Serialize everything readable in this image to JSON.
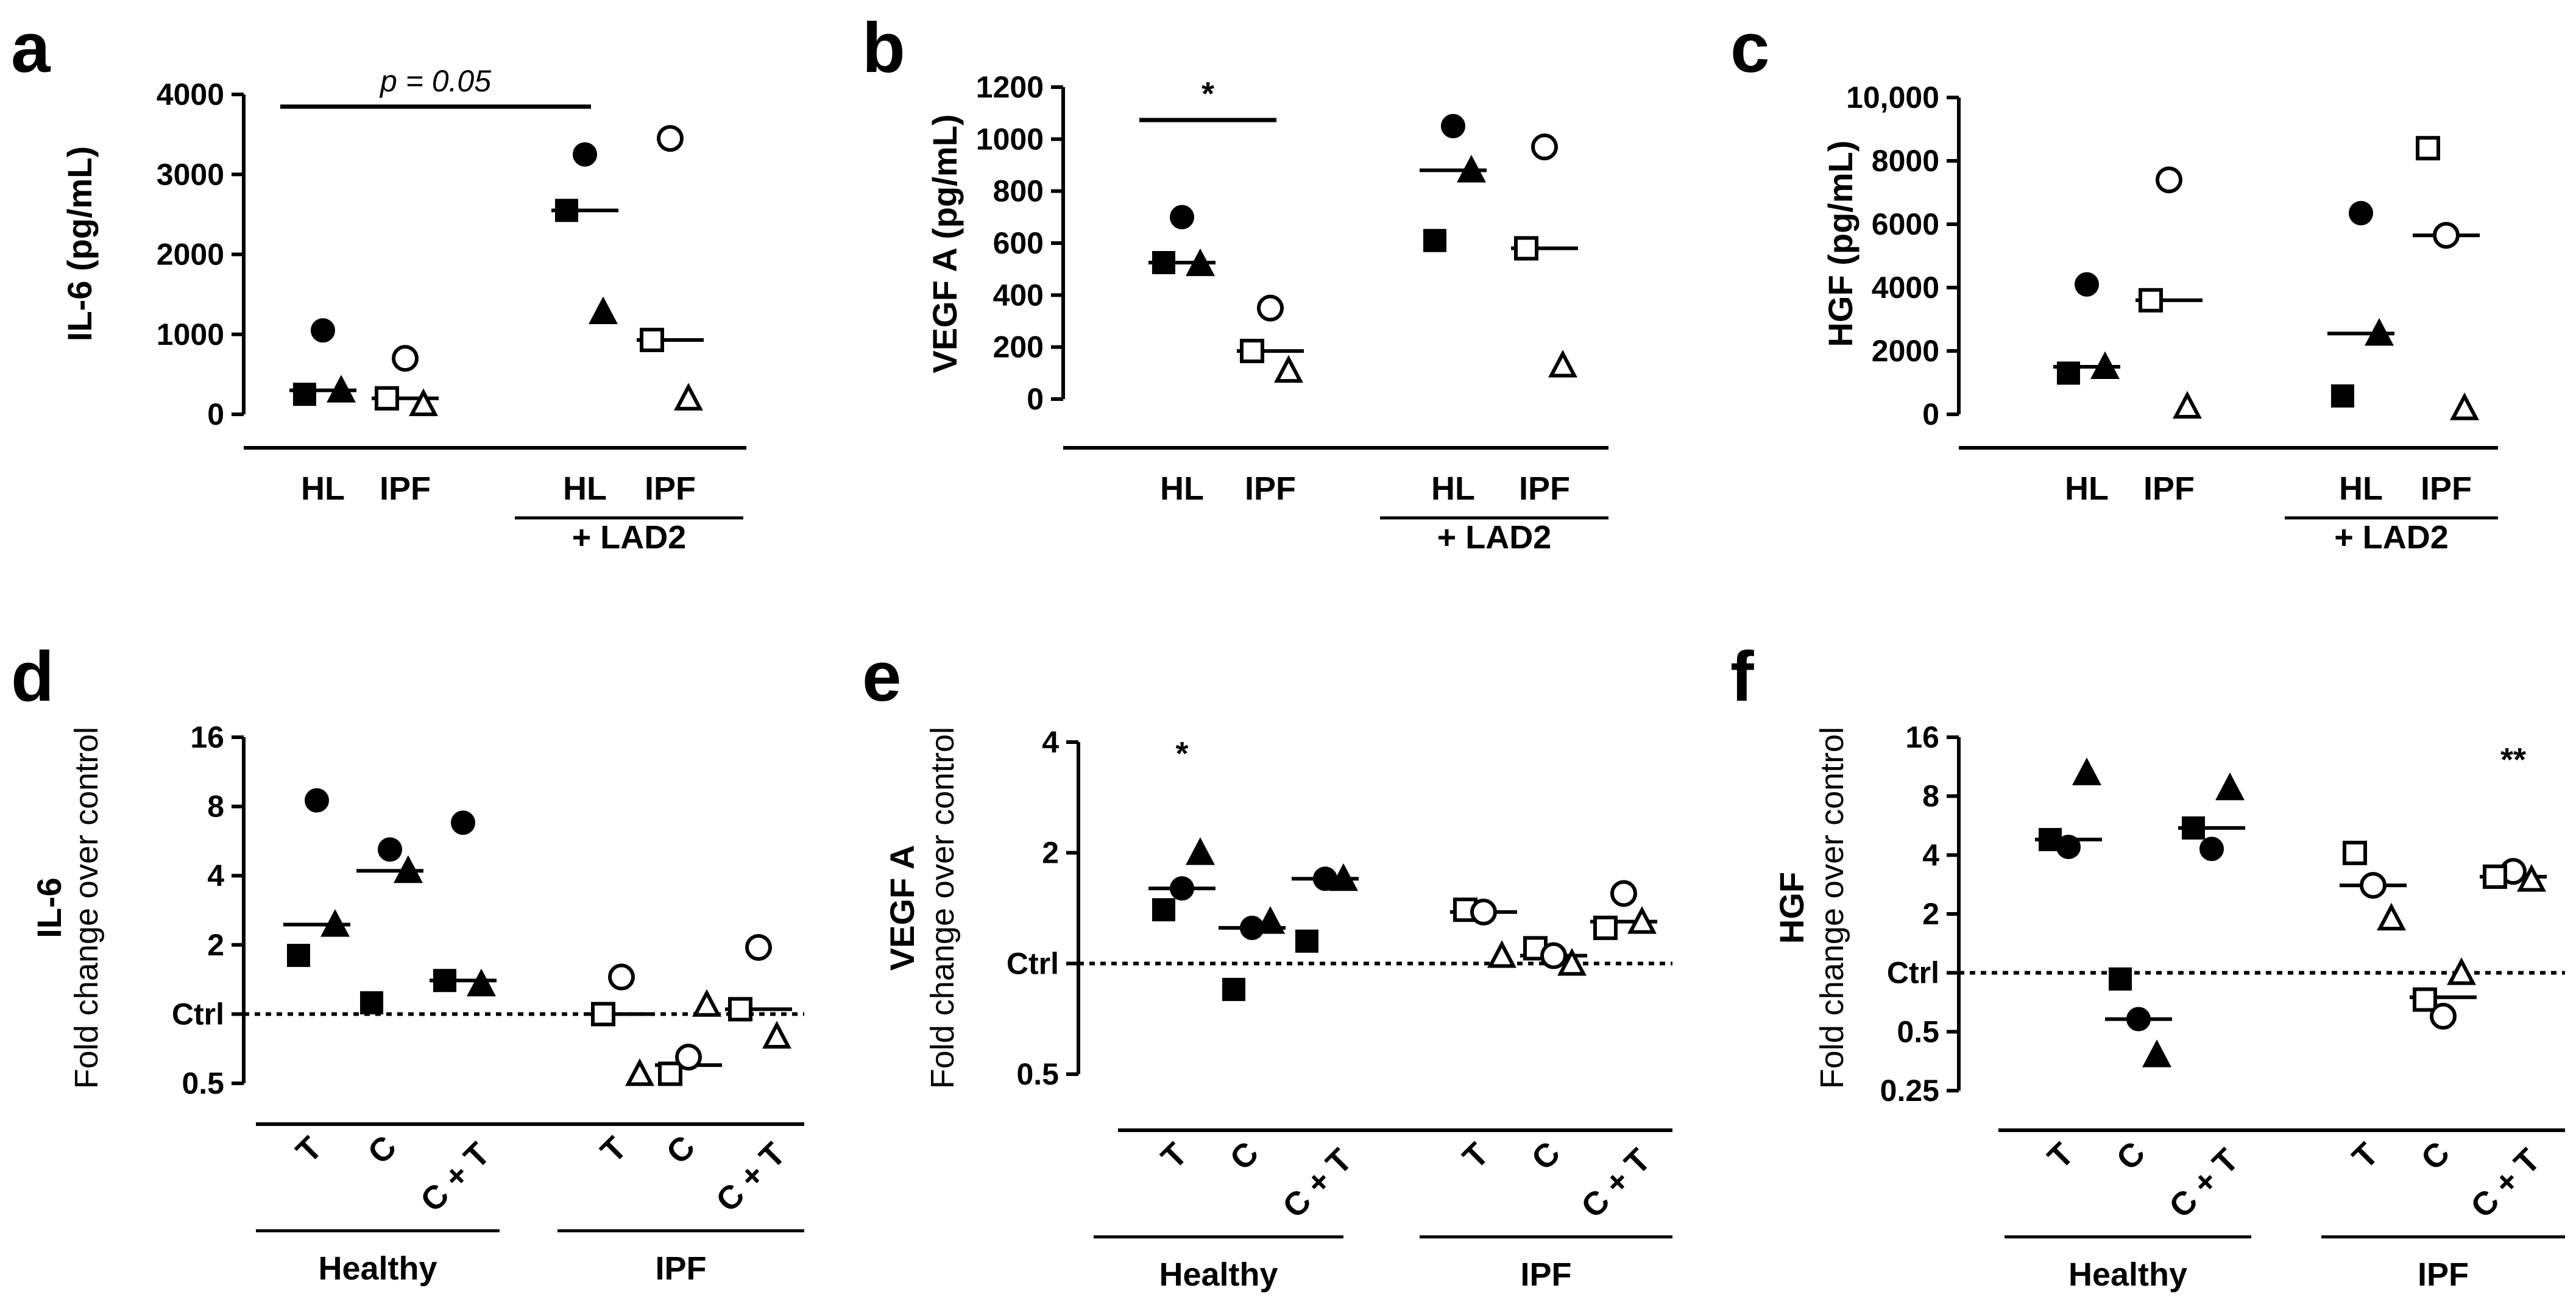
{
  "chart_data": [
    {
      "panel": "a",
      "type": "scatter",
      "scale": "linear",
      "ylabel": "IL-6 (pg/mL)",
      "yticks": [
        0,
        1000,
        2000,
        3000,
        4000
      ],
      "ylim": [
        0,
        4000
      ],
      "categories": [
        "HL",
        "IPF",
        "HL",
        "IPF"
      ],
      "group_labels": [
        "+ LAD2"
      ],
      "points": [
        {
          "cat": 0,
          "marker": "filled-circle",
          "y": 1050
        },
        {
          "cat": 0,
          "marker": "filled-square",
          "y": 250
        },
        {
          "cat": 0,
          "marker": "filled-triangle",
          "y": 300
        },
        {
          "cat": 1,
          "marker": "open-circle",
          "y": 700
        },
        {
          "cat": 1,
          "marker": "open-triangle",
          "y": 130
        },
        {
          "cat": 1,
          "marker": "open-square",
          "y": 200
        },
        {
          "cat": 2,
          "marker": "filled-circle",
          "y": 3250
        },
        {
          "cat": 2,
          "marker": "filled-square",
          "y": 2550
        },
        {
          "cat": 2,
          "marker": "filled-triangle",
          "y": 1280
        },
        {
          "cat": 3,
          "marker": "open-circle",
          "y": 3450
        },
        {
          "cat": 3,
          "marker": "open-square",
          "y": 930
        },
        {
          "cat": 3,
          "marker": "open-triangle",
          "y": 200
        }
      ],
      "medians": [
        300,
        200,
        2550,
        930
      ],
      "significance": {
        "from": 0,
        "to": 2,
        "label": "p = 0.05"
      }
    },
    {
      "panel": "b",
      "type": "scatter",
      "scale": "linear",
      "ylabel": "VEGF A  (pg/mL)",
      "yticks": [
        0,
        200,
        400,
        600,
        800,
        1000,
        1200
      ],
      "ylim": [
        0,
        1200
      ],
      "categories": [
        "HL",
        "IPF",
        "HL",
        "IPF"
      ],
      "group_labels": [
        "+ LAD2"
      ],
      "points": [
        {
          "cat": 0,
          "marker": "filled-circle",
          "y": 700
        },
        {
          "cat": 0,
          "marker": "filled-triangle",
          "y": 520
        },
        {
          "cat": 0,
          "marker": "filled-square",
          "y": 525
        },
        {
          "cat": 1,
          "marker": "open-circle",
          "y": 350
        },
        {
          "cat": 1,
          "marker": "open-square",
          "y": 185
        },
        {
          "cat": 1,
          "marker": "open-triangle",
          "y": 110
        },
        {
          "cat": 2,
          "marker": "filled-circle",
          "y": 1050
        },
        {
          "cat": 2,
          "marker": "filled-triangle",
          "y": 880
        },
        {
          "cat": 2,
          "marker": "filled-square",
          "y": 610
        },
        {
          "cat": 3,
          "marker": "open-circle",
          "y": 970
        },
        {
          "cat": 3,
          "marker": "open-square",
          "y": 580
        },
        {
          "cat": 3,
          "marker": "open-triangle",
          "y": 130
        }
      ],
      "medians": [
        525,
        185,
        880,
        580
      ],
      "significance": {
        "from": 0,
        "to": 1,
        "label": "*"
      }
    },
    {
      "panel": "c",
      "type": "scatter",
      "scale": "linear",
      "ylabel": "HGF (pg/mL)",
      "yticks": [
        0,
        2000,
        4000,
        6000,
        8000,
        10000
      ],
      "ytick_labels": [
        "0",
        "2000",
        "4000",
        "6000",
        "8000",
        "10,000"
      ],
      "ylim": [
        0,
        10000
      ],
      "categories": [
        "HL",
        "IPF",
        "HL",
        "IPF"
      ],
      "group_labels": [
        "+ LAD2"
      ],
      "points": [
        {
          "cat": 0,
          "marker": "filled-circle",
          "y": 4100
        },
        {
          "cat": 0,
          "marker": "filled-square",
          "y": 1300
        },
        {
          "cat": 0,
          "marker": "filled-triangle",
          "y": 1500
        },
        {
          "cat": 1,
          "marker": "open-circle",
          "y": 7400
        },
        {
          "cat": 1,
          "marker": "open-square",
          "y": 3600
        },
        {
          "cat": 1,
          "marker": "open-triangle",
          "y": 250
        },
        {
          "cat": 2,
          "marker": "filled-circle",
          "y": 6350
        },
        {
          "cat": 2,
          "marker": "filled-triangle",
          "y": 2550
        },
        {
          "cat": 2,
          "marker": "filled-square",
          "y": 580
        },
        {
          "cat": 3,
          "marker": "open-square",
          "y": 8400
        },
        {
          "cat": 3,
          "marker": "open-circle",
          "y": 5650
        },
        {
          "cat": 3,
          "marker": "open-triangle",
          "y": 200
        }
      ],
      "medians": [
        1500,
        3600,
        2550,
        5650
      ]
    },
    {
      "panel": "d",
      "type": "scatter",
      "scale": "log2",
      "ylabel": "IL-6",
      "ylabel2": "Fold change over control",
      "yticks": [
        0.5,
        1,
        2,
        4,
        8,
        16
      ],
      "ytick_labels": [
        "0.5",
        "Ctrl",
        "2",
        "4",
        "8",
        "16"
      ],
      "ylim": [
        0.5,
        16
      ],
      "categories": [
        "T",
        "C",
        "C + T",
        "T",
        "C",
        "C + T"
      ],
      "group_labels": [
        "Healthy",
        "IPF"
      ],
      "points": [
        {
          "cat": 0,
          "marker": "filled-circle",
          "y": 8.5
        },
        {
          "cat": 0,
          "marker": "filled-triangle",
          "y": 2.45
        },
        {
          "cat": 0,
          "marker": "filled-square",
          "y": 1.8
        },
        {
          "cat": 1,
          "marker": "filled-circle",
          "y": 5.2
        },
        {
          "cat": 1,
          "marker": "filled-triangle",
          "y": 4.2
        },
        {
          "cat": 1,
          "marker": "filled-square",
          "y": 1.12
        },
        {
          "cat": 2,
          "marker": "filled-circle",
          "y": 6.8
        },
        {
          "cat": 2,
          "marker": "filled-triangle",
          "y": 1.35
        },
        {
          "cat": 2,
          "marker": "filled-square",
          "y": 1.4
        },
        {
          "cat": 3,
          "marker": "open-circle",
          "y": 1.45
        },
        {
          "cat": 3,
          "marker": "open-square",
          "y": 1.0
        },
        {
          "cat": 3,
          "marker": "open-triangle",
          "y": 0.55
        },
        {
          "cat": 4,
          "marker": "open-triangle",
          "y": 1.1
        },
        {
          "cat": 4,
          "marker": "open-square",
          "y": 0.55
        },
        {
          "cat": 4,
          "marker": "open-circle",
          "y": 0.65
        },
        {
          "cat": 5,
          "marker": "open-circle",
          "y": 1.95
        },
        {
          "cat": 5,
          "marker": "open-square",
          "y": 1.05
        },
        {
          "cat": 5,
          "marker": "open-triangle",
          "y": 0.8
        }
      ],
      "medians": [
        2.45,
        4.2,
        1.4,
        1.0,
        0.6,
        1.05
      ],
      "star_labels": []
    },
    {
      "panel": "e",
      "type": "scatter",
      "scale": "log2",
      "ylabel": "VEGF A",
      "ylabel2": "Fold change over control",
      "yticks": [
        0.5,
        1,
        2,
        4
      ],
      "ytick_labels": [
        "0.5",
        "Ctrl",
        "2",
        "4"
      ],
      "ylim": [
        0.5,
        4
      ],
      "categories": [
        "T",
        "C",
        "C + T",
        "T",
        "C",
        "C + T"
      ],
      "group_labels": [
        "Healthy",
        "IPF"
      ],
      "points": [
        {
          "cat": 0,
          "marker": "filled-triangle",
          "y": 2.0
        },
        {
          "cat": 0,
          "marker": "filled-circle",
          "y": 1.6
        },
        {
          "cat": 0,
          "marker": "filled-square",
          "y": 1.4
        },
        {
          "cat": 1,
          "marker": "filled-triangle",
          "y": 1.3
        },
        {
          "cat": 1,
          "marker": "filled-circle",
          "y": 1.25
        },
        {
          "cat": 1,
          "marker": "filled-square",
          "y": 0.85
        },
        {
          "cat": 2,
          "marker": "filled-triangle",
          "y": 1.7
        },
        {
          "cat": 2,
          "marker": "filled-circle",
          "y": 1.7
        },
        {
          "cat": 2,
          "marker": "filled-square",
          "y": 1.15
        },
        {
          "cat": 3,
          "marker": "open-square",
          "y": 1.4
        },
        {
          "cat": 3,
          "marker": "open-circle",
          "y": 1.38
        },
        {
          "cat": 3,
          "marker": "open-triangle",
          "y": 1.05
        },
        {
          "cat": 4,
          "marker": "open-square",
          "y": 1.1
        },
        {
          "cat": 4,
          "marker": "open-circle",
          "y": 1.05
        },
        {
          "cat": 4,
          "marker": "open-triangle",
          "y": 1.0
        },
        {
          "cat": 5,
          "marker": "open-circle",
          "y": 1.55
        },
        {
          "cat": 5,
          "marker": "open-triangle",
          "y": 1.3
        },
        {
          "cat": 5,
          "marker": "open-square",
          "y": 1.25
        }
      ],
      "medians": [
        1.6,
        1.25,
        1.7,
        1.38,
        1.05,
        1.3
      ],
      "star_labels": [
        {
          "cat": 0,
          "label": "*"
        }
      ]
    },
    {
      "panel": "f",
      "type": "scatter",
      "scale": "log2",
      "ylabel": "HGF",
      "ylabel2": "Fold change over control",
      "yticks": [
        0.25,
        0.5,
        1,
        2,
        4,
        8,
        16
      ],
      "ytick_labels": [
        "0.25",
        "0.5",
        "Ctrl",
        "2",
        "4",
        "8",
        "16"
      ],
      "ylim": [
        0.25,
        16
      ],
      "categories": [
        "T",
        "C",
        "C + T",
        "T",
        "C",
        "C + T"
      ],
      "group_labels": [
        "Healthy",
        "IPF"
      ],
      "points": [
        {
          "cat": 0,
          "marker": "filled-triangle",
          "y": 10.5
        },
        {
          "cat": 0,
          "marker": "filled-square",
          "y": 4.8
        },
        {
          "cat": 0,
          "marker": "filled-circle",
          "y": 4.4
        },
        {
          "cat": 1,
          "marker": "filled-square",
          "y": 0.93
        },
        {
          "cat": 1,
          "marker": "filled-circle",
          "y": 0.58
        },
        {
          "cat": 1,
          "marker": "filled-triangle",
          "y": 0.38
        },
        {
          "cat": 2,
          "marker": "filled-triangle",
          "y": 8.8
        },
        {
          "cat": 2,
          "marker": "filled-square",
          "y": 5.5
        },
        {
          "cat": 2,
          "marker": "filled-circle",
          "y": 4.3
        },
        {
          "cat": 3,
          "marker": "open-square",
          "y": 4.1
        },
        {
          "cat": 3,
          "marker": "open-circle",
          "y": 2.8
        },
        {
          "cat": 3,
          "marker": "open-triangle",
          "y": 1.9
        },
        {
          "cat": 4,
          "marker": "open-triangle",
          "y": 1.0
        },
        {
          "cat": 4,
          "marker": "open-square",
          "y": 0.73
        },
        {
          "cat": 4,
          "marker": "open-circle",
          "y": 0.6
        },
        {
          "cat": 5,
          "marker": "open-circle",
          "y": 3.3
        },
        {
          "cat": 5,
          "marker": "open-triangle",
          "y": 3.0
        },
        {
          "cat": 5,
          "marker": "open-square",
          "y": 3.1
        }
      ],
      "medians": [
        4.8,
        0.58,
        5.5,
        2.8,
        0.75,
        3.1
      ],
      "star_labels": [
        {
          "cat": 5,
          "label": "**"
        }
      ]
    }
  ]
}
